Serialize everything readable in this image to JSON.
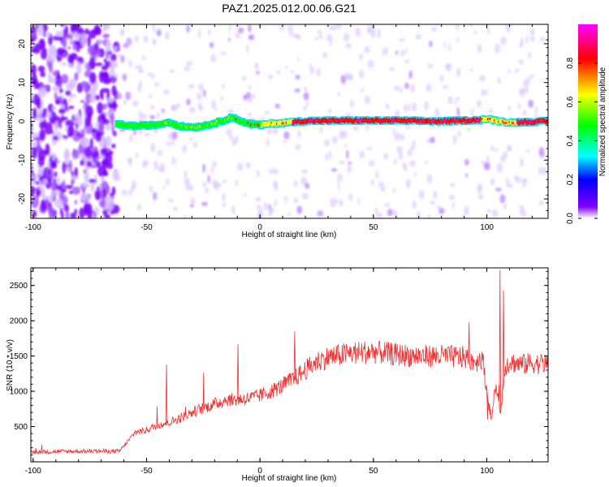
{
  "title": "PAZ1.2025.012.00.06.G21",
  "chart_data": [
    {
      "type": "heatmap",
      "xlabel": "Height of straight line (km)",
      "ylabel": "Frequency (Hz)",
      "xlim": [
        -101,
        127
      ],
      "ylim": [
        -25,
        25
      ],
      "x_ticks": [
        -100,
        -50,
        0,
        50,
        100
      ],
      "y_ticks": [
        -20,
        -10,
        0,
        10,
        20
      ],
      "colorbar": {
        "label": "Normalized spectral amplitude",
        "range": [
          0,
          1
        ],
        "ticks": [
          0,
          0.2,
          0.4,
          0.6,
          0.8
        ],
        "colors": [
          "#ffffff",
          "#8000ff",
          "#0000ff",
          "#00ffff",
          "#00ff00",
          "#ffff00",
          "#ff0000",
          "#ff00ff"
        ]
      },
      "ridge": {
        "x": [
          -63,
          -55,
          -45,
          -40,
          -35,
          -28,
          -22,
          -16,
          -13,
          -10,
          -5,
          0,
          5,
          10,
          20,
          40,
          60,
          80,
          95,
          100,
          105,
          110,
          127
        ],
        "y": [
          -0.8,
          -1.2,
          -0.9,
          -0.2,
          -1.3,
          -1.5,
          -0.8,
          0.2,
          1.0,
          0.5,
          -0.6,
          -1.0,
          -0.6,
          -0.4,
          0.1,
          0.2,
          0.2,
          0.0,
          0.3,
          0.6,
          0.1,
          -0.3,
          0.0
        ],
        "amplitude": [
          0.35,
          0.4,
          0.45,
          0.5,
          0.5,
          0.55,
          0.55,
          0.6,
          0.62,
          0.65,
          0.65,
          0.65,
          0.7,
          0.75,
          0.9,
          0.92,
          0.92,
          0.9,
          0.85,
          0.8,
          0.7,
          0.8,
          0.9
        ]
      }
    },
    {
      "type": "line",
      "xlabel": "Height of straight line (km)",
      "ylabel": "SNR (10 * v/v)",
      "xlim": [
        -101,
        127
      ],
      "ylim": [
        0,
        2750
      ],
      "x_ticks": [
        -100,
        -50,
        0,
        50,
        100
      ],
      "y_ticks": [
        500,
        1000,
        1500,
        2000,
        2500
      ],
      "color": "#f03030",
      "series": [
        {
          "x": [
            -101,
            -90,
            -80,
            -70,
            -62,
            -58,
            -55,
            -50,
            -45,
            -40,
            -35,
            -30,
            -25,
            -20,
            -15,
            -10,
            -5,
            0,
            5,
            10,
            15,
            20,
            25,
            30,
            40,
            50,
            60,
            70,
            80,
            90,
            95,
            98,
            100,
            102,
            104,
            106,
            108,
            110,
            115,
            120,
            127
          ],
          "values": [
            140,
            145,
            150,
            150,
            150,
            300,
            420,
            450,
            520,
            560,
            620,
            700,
            760,
            820,
            880,
            880,
            900,
            940,
            1000,
            1080,
            1180,
            1300,
            1420,
            1480,
            1540,
            1560,
            1520,
            1500,
            1500,
            1480,
            1420,
            1480,
            1000,
            600,
            1100,
            650,
            1350,
            1420,
            1380,
            1400,
            1390
          ]
        }
      ]
    }
  ]
}
